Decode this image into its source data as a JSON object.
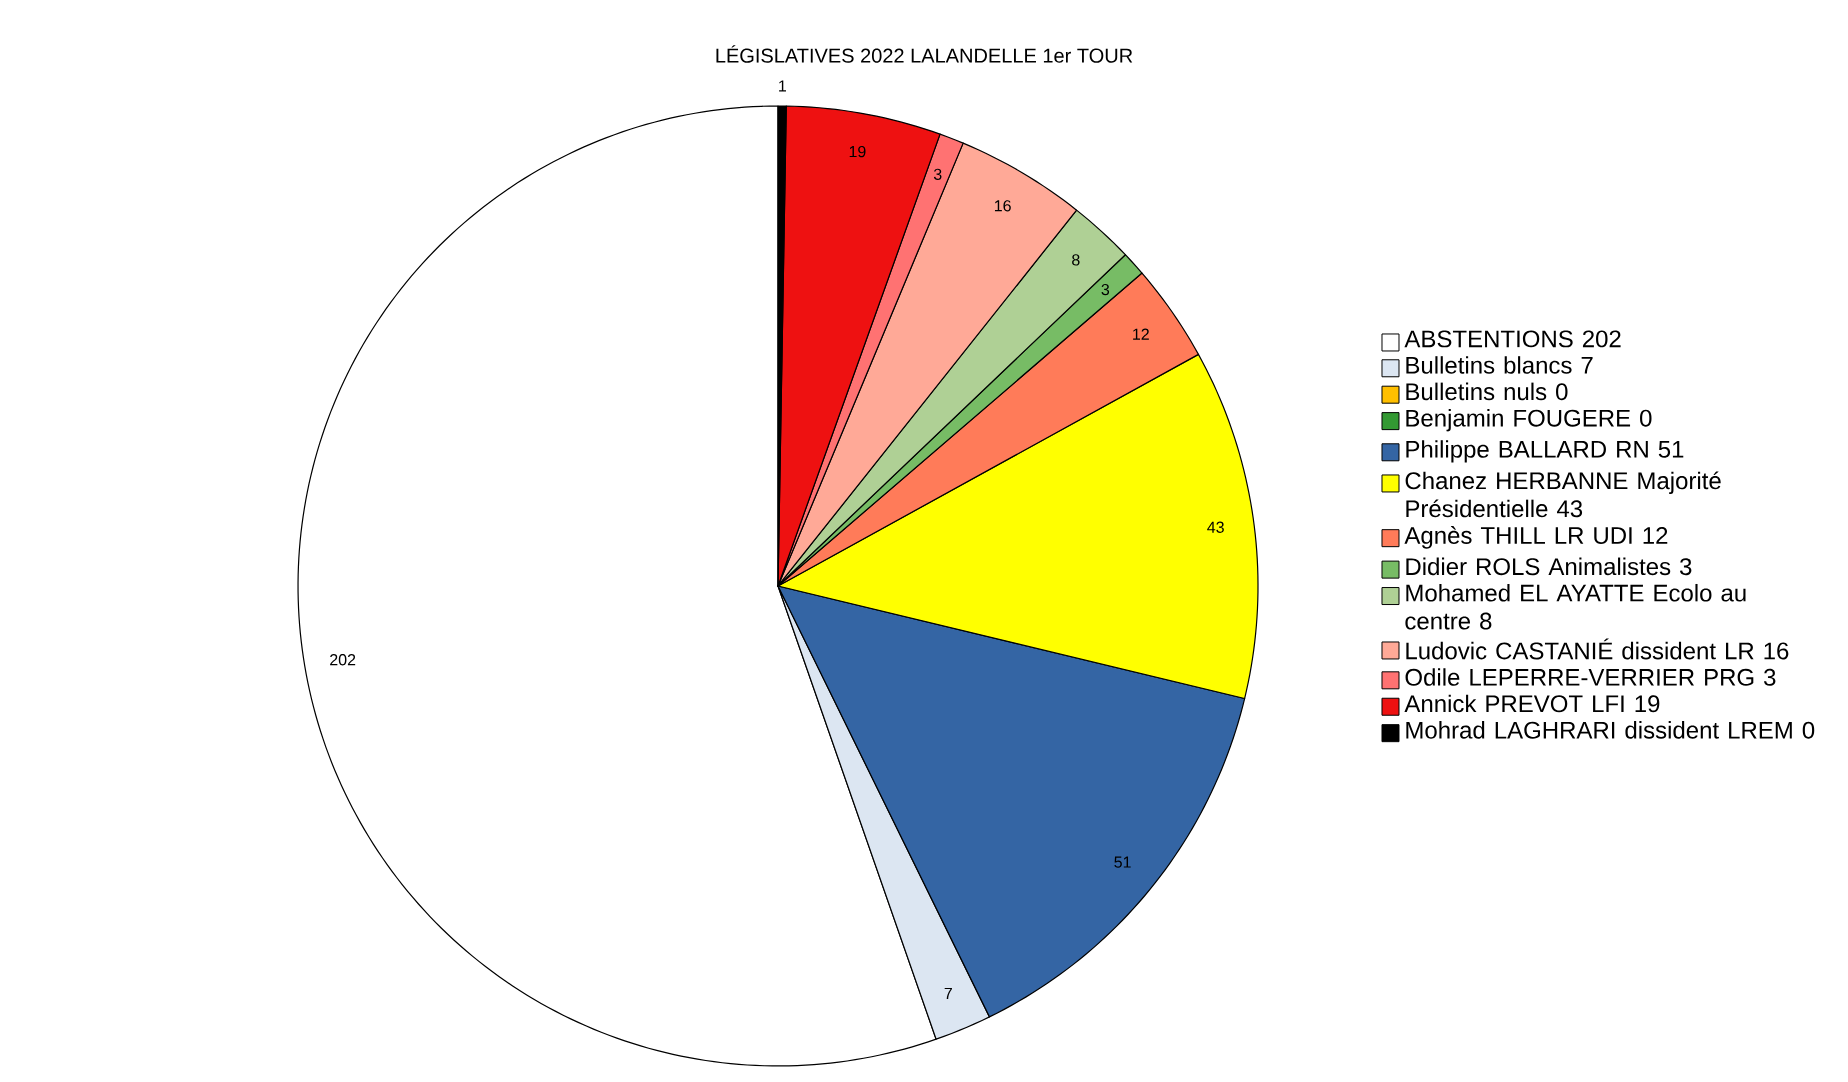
{
  "chart_data": {
    "type": "pie",
    "title": "LÉGISLATIVES 2022 LALANDELLE 1er TOUR",
    "categories": [
      "ABSTENTIONS 202",
      "Bulletins blancs 7",
      "Bulletins nuls 0",
      "Benjamin FOUGERE 0",
      "Philippe BALLARD RN 51",
      "Chanez HERBANNE Majorité Présidentielle 43",
      "Agnès THILL LR UDI 12",
      "Didier ROLS Animalistes 3",
      "Mohamed EL AYATTE Ecolo au centre 8",
      "Ludovic CASTANIÉ dissident LR  16",
      "Odile LEPERRE-VERRIER PRG 3",
      "Annick PREVOT LFI 19",
      "Mohrad LAGHRARI dissident LREM 0"
    ],
    "values": [
      202,
      7,
      0,
      0,
      51,
      43,
      12,
      3,
      8,
      16,
      3,
      19,
      1
    ],
    "value_labels": [
      "202",
      "7",
      null,
      null,
      "51",
      "43",
      "12",
      "3",
      "8",
      "16",
      "3",
      "19",
      "1"
    ],
    "colors": [
      "#ffffff",
      "#dce6f2",
      "#ffbf00",
      "#339933",
      "#3465a4",
      "#ffff00",
      "#ff7b59",
      "#77bc65",
      "#afd095",
      "#ffa997",
      "#ff7272",
      "#ee1111",
      "#000000"
    ],
    "legend": "right"
  }
}
